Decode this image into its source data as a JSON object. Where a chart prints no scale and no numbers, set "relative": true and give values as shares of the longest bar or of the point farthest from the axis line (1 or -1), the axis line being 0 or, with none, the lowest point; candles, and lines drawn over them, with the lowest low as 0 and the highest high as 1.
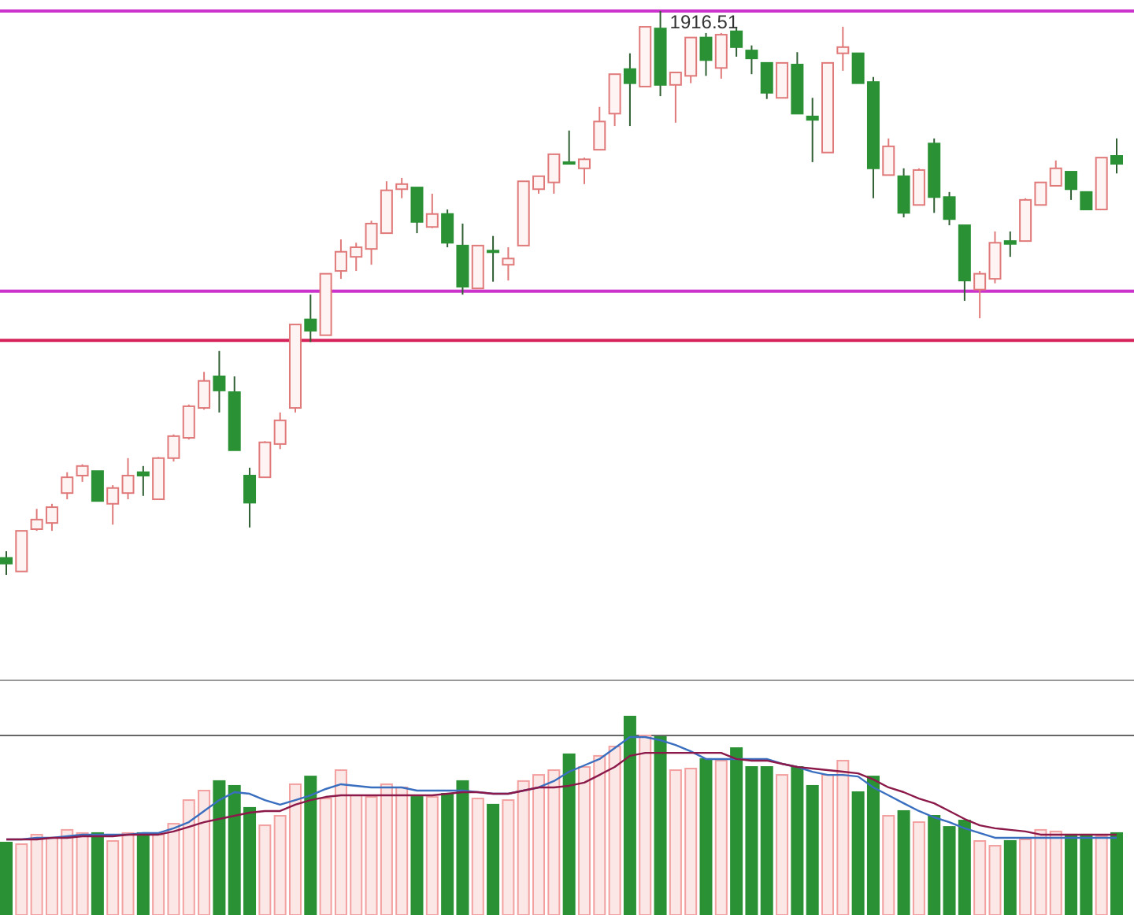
{
  "chart_data": [
    {
      "type": "candlestick",
      "relative": true,
      "categories": [
        null,
        null,
        null,
        null,
        null,
        null,
        null,
        null,
        null,
        null,
        null,
        null,
        null,
        null,
        null,
        null,
        null,
        null,
        null,
        null,
        null,
        null,
        null,
        null,
        null,
        null,
        null,
        null,
        null,
        null,
        null,
        null,
        null,
        null,
        null,
        null,
        null,
        null,
        null,
        null,
        null,
        null,
        null,
        null,
        null,
        null,
        null,
        null,
        null,
        null,
        null,
        null,
        null,
        null,
        null,
        null,
        null,
        null,
        null,
        null,
        null,
        null,
        null,
        null,
        null,
        null,
        null,
        null,
        null,
        null,
        null,
        null,
        null,
        null
      ],
      "ohlc": [
        [
          0.03,
          0.042,
          0,
          0.02
        ],
        [
          0.006,
          0.078,
          0.006,
          0.078
        ],
        [
          0.081,
          0.117,
          0.078,
          0.098
        ],
        [
          0.092,
          0.126,
          0.078,
          0.12
        ],
        [
          0.145,
          0.182,
          0.134,
          0.173
        ],
        [
          0.176,
          0.196,
          0.165,
          0.193
        ],
        [
          0.184,
          0.184,
          0.131,
          0.131
        ],
        [
          0.126,
          0.159,
          0.089,
          0.154
        ],
        [
          0.145,
          0.207,
          0.134,
          0.176
        ],
        [
          0.182,
          0.193,
          0.14,
          0.176
        ],
        [
          0.134,
          0.209,
          0.134,
          0.207
        ],
        [
          0.207,
          0.249,
          0.201,
          0.246
        ],
        [
          0.243,
          0.302,
          0.24,
          0.299
        ],
        [
          0.296,
          0.36,
          0.293,
          0.344
        ],
        [
          0.352,
          0.397,
          0.288,
          0.327
        ],
        [
          0.324,
          0.352,
          0.221,
          0.221
        ],
        [
          0.176,
          0.19,
          0.084,
          0.128
        ],
        [
          0.173,
          0.237,
          0.173,
          0.235
        ],
        [
          0.232,
          0.288,
          0.223,
          0.274
        ],
        [
          0.296,
          0.444,
          0.288,
          0.444
        ],
        [
          0.453,
          0.497,
          0.413,
          0.433
        ],
        [
          0.425,
          0.534,
          0.425,
          0.534
        ],
        [
          0.539,
          0.595,
          0.525,
          0.573
        ],
        [
          0.564,
          0.589,
          0.539,
          0.581
        ],
        [
          0.578,
          0.628,
          0.55,
          0.623
        ],
        [
          0.606,
          0.698,
          0.606,
          0.682
        ],
        [
          0.684,
          0.704,
          0.668,
          0.693
        ],
        [
          0.687,
          0.687,
          0.606,
          0.626
        ],
        [
          0.617,
          0.676,
          0.615,
          0.64
        ],
        [
          0.64,
          0.648,
          0.581,
          0.589
        ],
        [
          0.584,
          0.623,
          0.497,
          0.511
        ],
        [
          0.508,
          0.584,
          0.508,
          0.584
        ],
        [
          0.575,
          0.601,
          0.52,
          0.573
        ],
        [
          0.55,
          0.581,
          0.522,
          0.561
        ],
        [
          0.584,
          0.698,
          0.584,
          0.698
        ],
        [
          0.684,
          0.707,
          0.676,
          0.707
        ],
        [
          0.696,
          0.746,
          0.676,
          0.746
        ],
        [
          0.732,
          0.788,
          0.729,
          0.729
        ],
        [
          0.721,
          0.74,
          0.693,
          0.737
        ],
        [
          0.754,
          0.83,
          0.754,
          0.804
        ],
        [
          0.818,
          0.888,
          0.796,
          0.888
        ],
        [
          0.897,
          0.925,
          0.796,
          0.872
        ],
        [
          0.866,
          0.972,
          0.866,
          0.972
        ],
        [
          0.969,
          1,
          0.849,
          0.869
        ],
        [
          0.869,
          0.891,
          0.802,
          0.891
        ],
        [
          0.885,
          0.953,
          0.872,
          0.953
        ],
        [
          0.953,
          0.961,
          0.885,
          0.913
        ],
        [
          0.899,
          0.961,
          0.88,
          0.958
        ],
        [
          0.964,
          0.972,
          0.919,
          0.936
        ],
        [
          0.93,
          0.939,
          0.888,
          0.916
        ],
        [
          0.908,
          0.908,
          0.844,
          0.855
        ],
        [
          0.846,
          0.908,
          0.846,
          0.908
        ],
        [
          0.905,
          0.927,
          0.818,
          0.818
        ],
        [
          0.813,
          0.846,
          0.732,
          0.807
        ],
        [
          0.749,
          0.908,
          0.749,
          0.908
        ],
        [
          0.925,
          0.972,
          0.894,
          0.936
        ],
        [
          0.925,
          0.925,
          0.872,
          0.872
        ],
        [
          0.874,
          0.883,
          0.668,
          0.721
        ],
        [
          0.709,
          0.774,
          0.709,
          0.76
        ],
        [
          0.707,
          0.721,
          0.634,
          0.642
        ],
        [
          0.656,
          0.721,
          0.656,
          0.718
        ],
        [
          0.765,
          0.774,
          0.642,
          0.67
        ],
        [
          0.67,
          0.679,
          0.62,
          0.631
        ],
        [
          0.62,
          0.62,
          0.486,
          0.522
        ],
        [
          0.506,
          0.539,
          0.455,
          0.534
        ],
        [
          0.525,
          0.609,
          0.517,
          0.589
        ],
        [
          0.592,
          0.609,
          0.564,
          0.587
        ],
        [
          0.592,
          0.668,
          0.592,
          0.665
        ],
        [
          0.656,
          0.696,
          0.656,
          0.696
        ],
        [
          0.69,
          0.735,
          0.69,
          0.721
        ],
        [
          0.715,
          0.715,
          0.665,
          0.684
        ],
        [
          0.679,
          0.679,
          0.648,
          0.648
        ],
        [
          0.648,
          0.74,
          0.648,
          0.74
        ],
        [
          0.743,
          0.774,
          0.712,
          0.729
        ]
      ],
      "ref_lines": [
        {
          "axis": "y",
          "value": 1,
          "color": "#cc33cc"
        },
        {
          "axis": "y",
          "value": 0.503,
          "color": "#cc33cc"
        },
        {
          "axis": "y",
          "value": 0.416,
          "color": "#d6245a"
        }
      ],
      "annotations": [
        {
          "text": "1916.51",
          "y": 1
        }
      ]
    },
    {
      "type": "bar",
      "relative": true,
      "ref_lines": [
        {
          "axis": "y",
          "value": 0.905,
          "color": "#666666"
        }
      ],
      "categories": [
        null,
        null,
        null,
        null,
        null,
        null,
        null,
        null,
        null,
        null,
        null,
        null,
        null,
        null,
        null,
        null,
        null,
        null,
        null,
        null,
        null,
        null,
        null,
        null,
        null,
        null,
        null,
        null,
        null,
        null,
        null,
        null,
        null,
        null,
        null,
        null,
        null,
        null,
        null,
        null,
        null,
        null,
        null,
        null,
        null,
        null,
        null,
        null,
        null,
        null,
        null,
        null,
        null,
        null,
        null,
        null,
        null,
        null,
        null,
        null,
        null,
        null,
        null,
        null,
        null,
        null,
        null,
        null,
        null,
        null,
        null,
        null,
        null,
        null
      ],
      "series": [
        {
          "type": "bar",
          "values": [
            0.365,
            0.357,
            0.405,
            0.389,
            0.429,
            0.413,
            0.413,
            0.373,
            0.413,
            0.413,
            0.405,
            0.46,
            0.579,
            0.627,
            0.675,
            0.651,
            0.54,
            0.452,
            0.5,
            0.659,
            0.698,
            0.587,
            0.73,
            0.603,
            0.595,
            0.659,
            0.643,
            0.595,
            0.595,
            0.611,
            0.675,
            0.587,
            0.556,
            0.579,
            0.675,
            0.706,
            0.73,
            0.81,
            0.746,
            0.802,
            0.849,
            1,
            0.905,
            0.897,
            0.73,
            0.738,
            0.786,
            0.778,
            0.841,
            0.746,
            0.746,
            0.706,
            0.746,
            0.651,
            0.706,
            0.778,
            0.619,
            0.698,
            0.5,
            0.524,
            0.468,
            0.5,
            0.444,
            0.476,
            0.373,
            0.349,
            0.373,
            0.381,
            0.429,
            0.421,
            0.405,
            0.405,
            0.397,
            0.413
          ],
          "colors": [
            "#2a9134",
            "#f2a0a0",
            "#f2a0a0",
            "#f2a0a0",
            "#f2a0a0",
            "#f2a0a0",
            "#2a9134",
            "#f2a0a0",
            "#f2a0a0",
            "#2a9134",
            "#f2a0a0",
            "#f2a0a0",
            "#f2a0a0",
            "#f2a0a0",
            "#2a9134",
            "#2a9134",
            "#2a9134",
            "#f2a0a0",
            "#f2a0a0",
            "#f2a0a0",
            "#2a9134",
            "#f2a0a0",
            "#f2a0a0",
            "#f2a0a0",
            "#f2a0a0",
            "#f2a0a0",
            "#f2a0a0",
            "#2a9134",
            "#f2a0a0",
            "#2a9134",
            "#2a9134",
            "#f2a0a0",
            "#2a9134",
            "#f2a0a0",
            "#f2a0a0",
            "#f2a0a0",
            "#f2a0a0",
            "#2a9134",
            "#f2a0a0",
            "#f2a0a0",
            "#f2a0a0",
            "#2a9134",
            "#f2a0a0",
            "#2a9134",
            "#f2a0a0",
            "#f2a0a0",
            "#2a9134",
            "#f2a0a0",
            "#2a9134",
            "#2a9134",
            "#2a9134",
            "#f2a0a0",
            "#2a9134",
            "#2a9134",
            "#f2a0a0",
            "#f2a0a0",
            "#2a9134",
            "#2a9134",
            "#f2a0a0",
            "#2a9134",
            "#f2a0a0",
            "#2a9134",
            "#2a9134",
            "#2a9134",
            "#f2a0a0",
            "#f2a0a0",
            "#2a9134",
            "#f2a0a0",
            "#f2a0a0",
            "#f2a0a0",
            "#2a9134",
            "#2a9134",
            "#f2a0a0",
            "#2a9134"
          ]
        },
        {
          "type": "line",
          "color": "#3a6fc0",
          "values": [
            0.381,
            0.381,
            0.389,
            0.389,
            0.397,
            0.405,
            0.405,
            0.405,
            0.405,
            0.413,
            0.413,
            0.437,
            0.468,
            0.524,
            0.579,
            0.619,
            0.611,
            0.579,
            0.556,
            0.579,
            0.603,
            0.635,
            0.659,
            0.651,
            0.643,
            0.643,
            0.643,
            0.627,
            0.627,
            0.627,
            0.627,
            0.619,
            0.611,
            0.611,
            0.627,
            0.643,
            0.675,
            0.722,
            0.754,
            0.786,
            0.841,
            0.897,
            0.897,
            0.881,
            0.857,
            0.825,
            0.786,
            0.786,
            0.786,
            0.786,
            0.786,
            0.762,
            0.746,
            0.722,
            0.706,
            0.706,
            0.698,
            0.643,
            0.603,
            0.563,
            0.524,
            0.492,
            0.468,
            0.437,
            0.413,
            0.389,
            0.389,
            0.389,
            0.389,
            0.389,
            0.389,
            0.389,
            0.389,
            0.389
          ]
        },
        {
          "type": "line",
          "color": "#8b1a4a",
          "values": [
            0.381,
            0.381,
            0.381,
            0.389,
            0.389,
            0.397,
            0.397,
            0.397,
            0.405,
            0.405,
            0.405,
            0.421,
            0.444,
            0.468,
            0.484,
            0.5,
            0.516,
            0.524,
            0.524,
            0.556,
            0.579,
            0.595,
            0.603,
            0.603,
            0.603,
            0.603,
            0.603,
            0.603,
            0.603,
            0.611,
            0.619,
            0.619,
            0.611,
            0.611,
            0.627,
            0.643,
            0.643,
            0.651,
            0.667,
            0.706,
            0.746,
            0.802,
            0.817,
            0.817,
            0.817,
            0.817,
            0.817,
            0.817,
            0.786,
            0.778,
            0.778,
            0.762,
            0.746,
            0.738,
            0.73,
            0.722,
            0.714,
            0.683,
            0.643,
            0.619,
            0.587,
            0.563,
            0.524,
            0.484,
            0.452,
            0.437,
            0.429,
            0.421,
            0.405,
            0.405,
            0.405,
            0.405,
            0.405,
            0.405
          ]
        }
      ]
    }
  ]
}
